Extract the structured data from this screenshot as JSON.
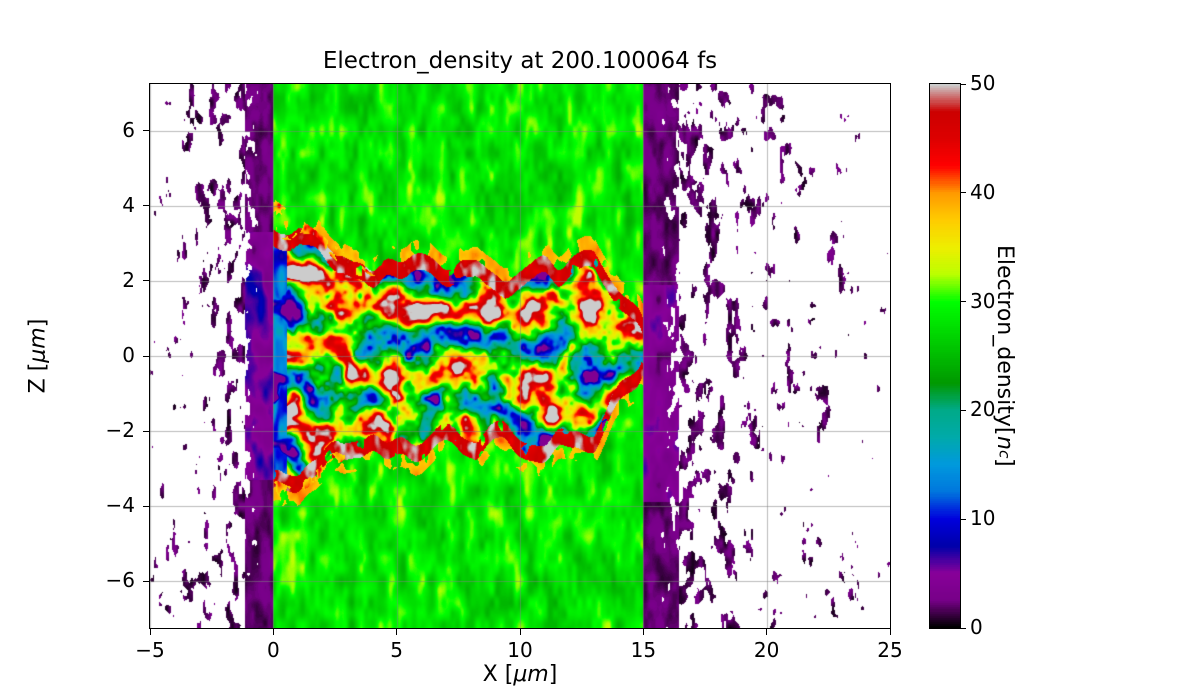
{
  "figure": {
    "title": "Electron_density at 200.100064 fs",
    "xlabel_parts": {
      "pre": "X [",
      "unit": "μm",
      "post": "]"
    },
    "ylabel_parts": {
      "pre": "Z [",
      "unit": "μm",
      "post": "]"
    },
    "colorbar_label_parts": {
      "pre": "Electron_density[",
      "var": "n",
      "sub": "c",
      "post": "]"
    }
  },
  "chart_data": {
    "type": "heatmap",
    "title": "Electron_density at 200.100064 fs",
    "time_fs": 200.100064,
    "xlabel": "X [μm]",
    "ylabel": "Z [μm]",
    "colorbar_label": "Electron_density[n_c]",
    "x_range": [
      -5,
      25
    ],
    "z_range": [
      -7.25,
      7.25
    ],
    "value_range": [
      0,
      50
    ],
    "x_ticks": [
      -5,
      0,
      5,
      10,
      15,
      20,
      25
    ],
    "z_ticks": [
      -6,
      -4,
      -2,
      0,
      2,
      4,
      6
    ],
    "colorbar_ticks": [
      0,
      10,
      20,
      30,
      40,
      50
    ],
    "grid": true,
    "grid_color": "#9a9a9a",
    "colormap": {
      "name": "nipy_spectral",
      "stops": [
        [
          0.0,
          "#000000"
        ],
        [
          0.05,
          "#770088"
        ],
        [
          0.1,
          "#880099"
        ],
        [
          0.15,
          "#0000aa"
        ],
        [
          0.2,
          "#0000dd"
        ],
        [
          0.25,
          "#0077dd"
        ],
        [
          0.3,
          "#0099dd"
        ],
        [
          0.35,
          "#00aaaa"
        ],
        [
          0.4,
          "#00aa88"
        ],
        [
          0.45,
          "#009900"
        ],
        [
          0.5,
          "#00bb00"
        ],
        [
          0.55,
          "#00dd00"
        ],
        [
          0.6,
          "#00ff00"
        ],
        [
          0.65,
          "#bbff00"
        ],
        [
          0.7,
          "#eeee00"
        ],
        [
          0.75,
          "#ffcc00"
        ],
        [
          0.8,
          "#ff9900"
        ],
        [
          0.85,
          "#ff0000"
        ],
        [
          0.9,
          "#dd0000"
        ],
        [
          0.95,
          "#cc0000"
        ],
        [
          1.0,
          "#cccccc"
        ]
      ]
    },
    "features": {
      "plasma_slab": {
        "x_min": 0,
        "x_max": 15,
        "background_density_nc": 30
      },
      "channel": {
        "half_width_um": 2.25,
        "left_flare_half_width_um": 3.85,
        "tip_x_um": 15,
        "min_density_nc": 4,
        "max_density_nc": 51,
        "boundary_density_nc": 45
      },
      "edge_band_left_x": [
        -1.15,
        0
      ],
      "edge_band_right_x": [
        15,
        16.45
      ],
      "vacuum_speckle_density_nc": 2
    }
  }
}
